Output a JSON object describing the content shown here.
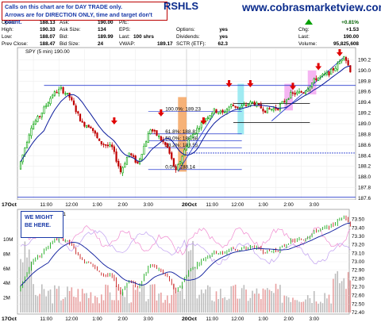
{
  "symbol": "RSHLS",
  "website": "www.cobrasmarketview.com",
  "notes": {
    "line1": "Calls on this chart are for DAY TRADE only.",
    "line2": "Arrows are for DIRECTION ONLY, time and target don't count.",
    "might": "WE MIGHT BE HERE."
  },
  "quote": [
    {
      "label": "Open:",
      "value": "188.13"
    },
    {
      "label": "Ask:",
      "value": "190.00"
    },
    {
      "label": "P/E:",
      "value": ""
    },
    {
      "label": "High:",
      "value": "190.33"
    },
    {
      "label": "Ask Size:",
      "value": "134"
    },
    {
      "label": "EPS:",
      "value": ""
    },
    {
      "label": "Low:",
      "value": "188.07"
    },
    {
      "label": "Bid:",
      "value": "189.99"
    },
    {
      "label": "Options:",
      "value": "yes"
    },
    {
      "label": "Prev Close:",
      "value": "188.47"
    },
    {
      "label": "Bid Size:",
      "value": "24"
    },
    {
      "label": "Dividends:",
      "value": "yes"
    },
    {
      "label": "Last:",
      "value": "100 shrs"
    },
    {
      "label": "VWAP:",
      "value": "189.17"
    },
    {
      "label": "SCTR (ETF):",
      "value": "62.3"
    }
  ],
  "right_quote": {
    "pct": "+0.81%",
    "chg_label": "Chg:",
    "chg": "+1.53",
    "last_label": "Last:",
    "last": "190.00",
    "volume_label": "Volume:",
    "volume": "95,825,608"
  },
  "price_legend": "SPY (5 min) 190.00",
  "colors": {
    "up": "#00a000",
    "down": "#c00000",
    "ma": "#0a1a9c",
    "fib": "#2a3fd0",
    "arrow": "#e00000",
    "orange": "#f4a460",
    "cyan": "#8fe8f0",
    "magenta": "#f3a8f0"
  },
  "chart_data": {
    "type": "candlestick",
    "price_panel": {
      "ylim": [
        187.6,
        190.4
      ],
      "yticks": [
        187.6,
        187.8,
        188.0,
        188.2,
        188.4,
        188.6,
        188.8,
        189.0,
        189.2,
        189.4,
        189.6,
        189.8,
        190.0,
        190.2
      ],
      "fib_levels": [
        {
          "label": "100.0%: 189.23",
          "value": 189.23
        },
        {
          "label": "61.8%: 188.81",
          "value": 188.81
        },
        {
          "label": "50.0%: 188.68",
          "value": 188.68
        },
        {
          "label": "38.2%: 188.55",
          "value": 188.55
        },
        {
          "label": "0.0%: 188.14",
          "value": 188.14
        }
      ]
    },
    "volume_panel": {
      "yticks": [
        "10M",
        "8M",
        "6M",
        "4M",
        "2M"
      ]
    },
    "lower_panel": {
      "ylim": [
        72.4,
        73.6
      ],
      "yticks": [
        "73.50",
        "73.40",
        "73.30",
        "73.20",
        "73.10",
        "73.00",
        "72.90",
        "72.80",
        "72.70",
        "72.60",
        "72.50",
        "72.40"
      ],
      "legend": "61"
    },
    "x_tick_labels": [
      "11:00",
      "12:00",
      "1:00",
      "2:00",
      "3:00",
      "11:00",
      "12:00",
      "1:00",
      "2:00",
      "3:00"
    ],
    "date_labels": [
      "17Oct",
      "20Oct"
    ]
  }
}
